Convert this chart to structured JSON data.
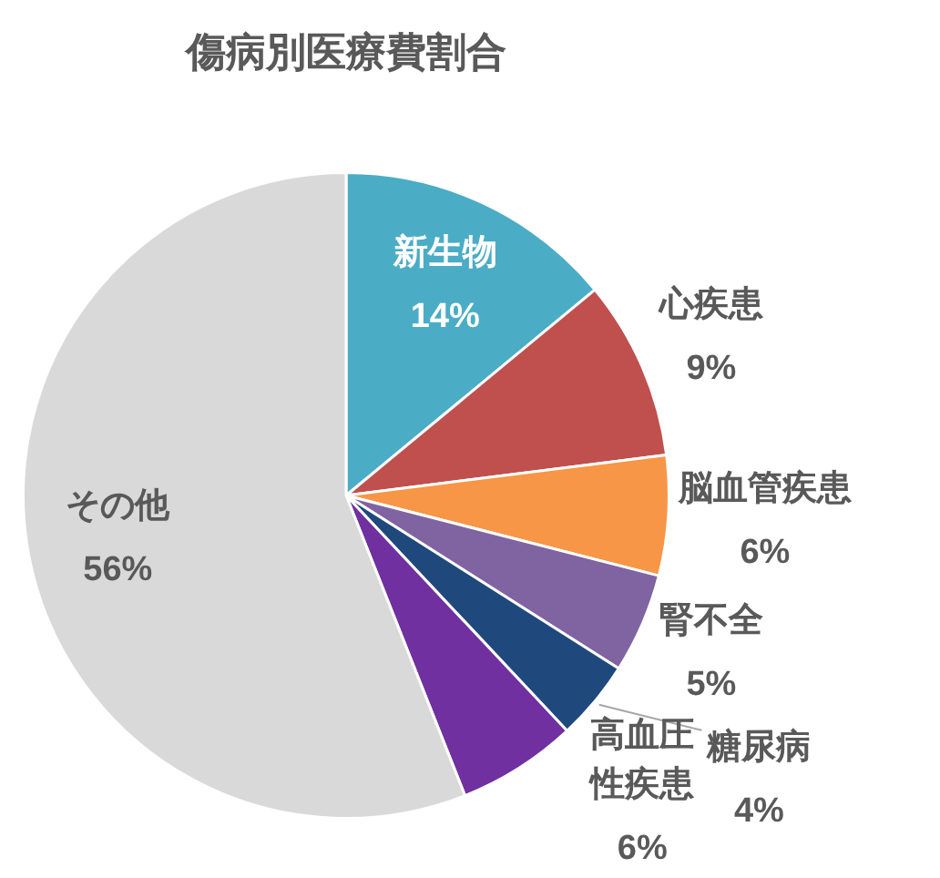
{
  "chart_data": {
    "type": "pie",
    "title": "傷病別医療費割合",
    "categories": [
      "新生物",
      "心疾患",
      "脳血管疾患",
      "腎不全",
      "糖尿病",
      "高血圧性疾患",
      "その他"
    ],
    "values": [
      14,
      9,
      6,
      5,
      4,
      6,
      56
    ],
    "colors": [
      "#4bacc6",
      "#c0504d",
      "#f79646",
      "#8064a2",
      "#1f497d",
      "#7030a0",
      "#d9d9d9"
    ],
    "value_labels": [
      "14%",
      "9%",
      "6%",
      "5%",
      "4%",
      "6%",
      "56%"
    ],
    "legend": false
  }
}
